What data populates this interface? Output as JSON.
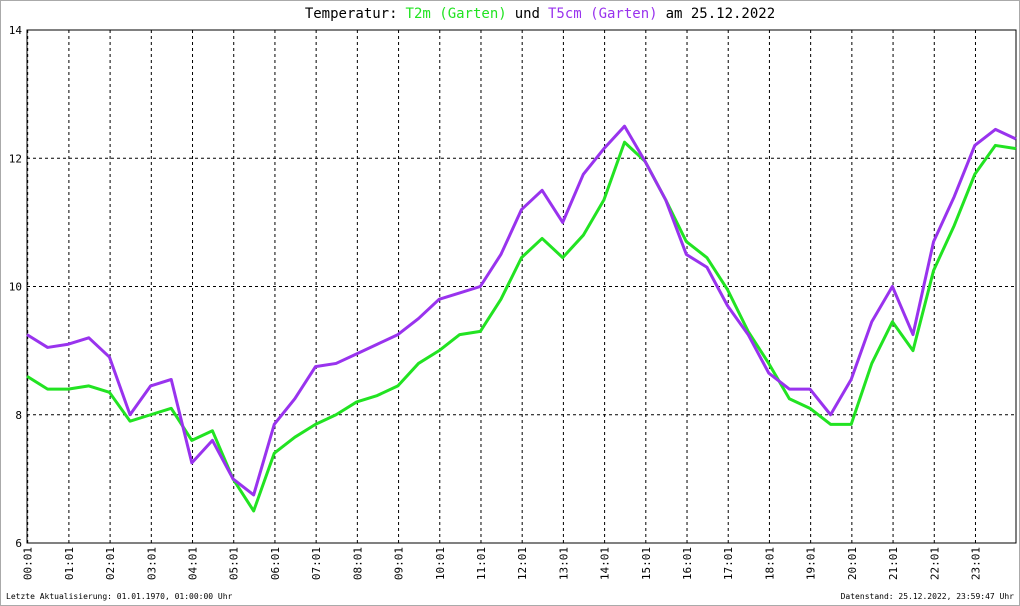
{
  "chart_data": {
    "type": "line",
    "title": [
      "Temperatur:",
      "und",
      "am 25.12.2022"
    ],
    "x": [
      0,
      30,
      60,
      90,
      120,
      150,
      180,
      210,
      240,
      270,
      300,
      330,
      360,
      390,
      420,
      450,
      480,
      510,
      540,
      570,
      600,
      630,
      660,
      690,
      720,
      750,
      780,
      810,
      840,
      870,
      900,
      930,
      960,
      990,
      1020,
      1050,
      1080,
      1110,
      1140,
      1170,
      1200,
      1230,
      1260,
      1290,
      1320,
      1350,
      1380,
      1410,
      1440
    ],
    "series": [
      {
        "name": "T2m (Garten)",
        "color": "#22e322",
        "values": [
          8.6,
          8.4,
          8.4,
          8.45,
          8.35,
          7.9,
          8.0,
          8.1,
          7.6,
          7.75,
          7.0,
          6.5,
          7.4,
          7.65,
          7.85,
          8.0,
          8.2,
          8.3,
          8.45,
          8.8,
          9.0,
          9.25,
          9.3,
          9.8,
          10.45,
          10.75,
          10.45,
          10.8,
          11.35,
          12.25,
          11.95,
          11.35,
          10.7,
          10.45,
          9.95,
          9.3,
          8.8,
          8.25,
          8.1,
          7.85,
          7.85,
          8.8,
          9.45,
          9.0,
          10.25,
          10.95,
          11.75,
          12.2,
          12.15
        ]
      },
      {
        "name": "T5cm (Garten)",
        "color": "#9933ee",
        "values": [
          9.25,
          9.05,
          9.1,
          9.2,
          8.9,
          8.0,
          8.45,
          8.55,
          7.25,
          7.6,
          7.0,
          6.75,
          7.85,
          8.25,
          8.75,
          8.8,
          8.95,
          9.1,
          9.25,
          9.5,
          9.8,
          9.9,
          10.0,
          10.5,
          11.2,
          11.5,
          11.0,
          11.75,
          12.15,
          12.5,
          11.95,
          11.35,
          10.5,
          10.3,
          9.7,
          9.25,
          8.65,
          8.4,
          8.4,
          8.0,
          8.55,
          9.45,
          10.0,
          9.25,
          10.7,
          11.4,
          12.2,
          12.45,
          12.3
        ]
      }
    ],
    "xlim": [
      0,
      1440
    ],
    "xticks": [
      {
        "value": 1,
        "label": "00:01"
      },
      {
        "value": 61,
        "label": "01:01"
      },
      {
        "value": 121,
        "label": "02:01"
      },
      {
        "value": 181,
        "label": "03:01"
      },
      {
        "value": 241,
        "label": "04:01"
      },
      {
        "value": 301,
        "label": "05:01"
      },
      {
        "value": 361,
        "label": "06:01"
      },
      {
        "value": 421,
        "label": "07:01"
      },
      {
        "value": 481,
        "label": "08:01"
      },
      {
        "value": 541,
        "label": "09:01"
      },
      {
        "value": 601,
        "label": "10:01"
      },
      {
        "value": 661,
        "label": "11:01"
      },
      {
        "value": 721,
        "label": "12:01"
      },
      {
        "value": 781,
        "label": "13:01"
      },
      {
        "value": 841,
        "label": "14:01"
      },
      {
        "value": 901,
        "label": "15:01"
      },
      {
        "value": 961,
        "label": "16:01"
      },
      {
        "value": 1021,
        "label": "17:01"
      },
      {
        "value": 1081,
        "label": "18:01"
      },
      {
        "value": 1141,
        "label": "19:01"
      },
      {
        "value": 1201,
        "label": "20:01"
      },
      {
        "value": 1261,
        "label": "21:01"
      },
      {
        "value": 1321,
        "label": "22:01"
      },
      {
        "value": 1381,
        "label": "23:01"
      }
    ],
    "ylim": [
      6,
      14
    ],
    "yticks": [
      6,
      8,
      10,
      12,
      14
    ],
    "grid": true,
    "footer_left": "Letzte Aktualisierung: 01.01.1970, 01:00:00 Uhr",
    "footer_right": "Datenstand: 25.12.2022, 23:59:47 Uhr"
  }
}
